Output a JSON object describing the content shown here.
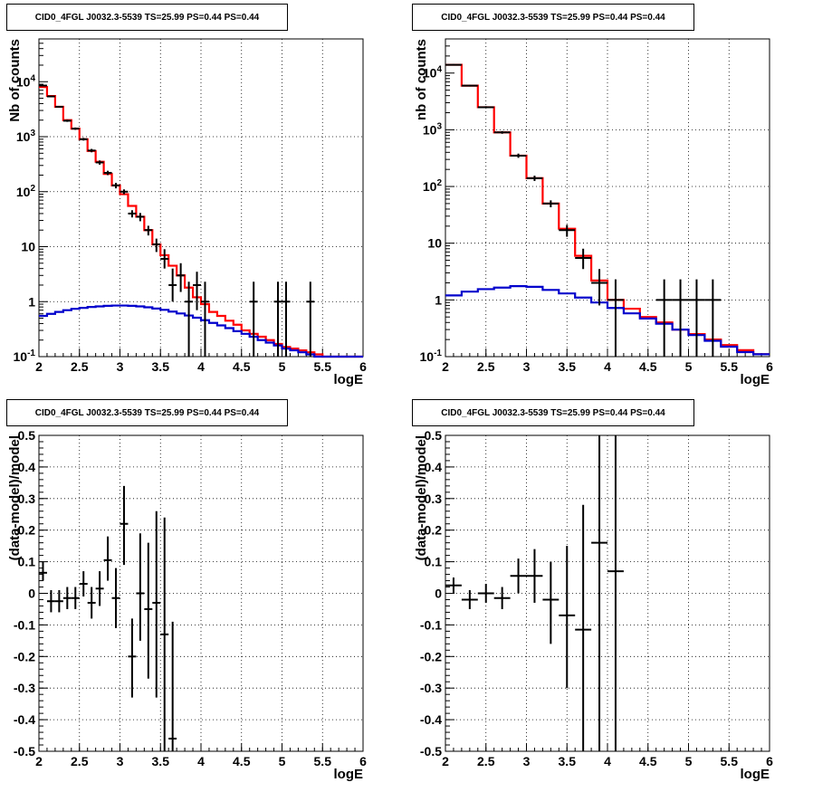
{
  "panels": [
    {
      "title": "CID0_4FGL J0032.3-5539 TS=25.99 PS=0.44 PS=0.44"
    },
    {
      "title": "CID0_4FGL J0032.3-5539 TS=25.99 PS=0.44 PS=0.44"
    },
    {
      "title": "CID0_4FGL J0032.3-5539 TS=25.99 PS=0.44 PS=0.44"
    },
    {
      "title": "CID0_4FGL J0032.3-5539 TS=25.99 PS=0.44 PS=0.44"
    }
  ],
  "colors": {
    "data": "#000000",
    "total_model": "#ff0000",
    "background": "#0000cc",
    "grid": "#000000"
  },
  "chart_data": [
    {
      "type": "line",
      "title": "CID0_4FGL J0032.3-5539 TS=25.99 PS=0.44 PS=0.44",
      "xlabel": "logE",
      "ylabel": "Nb of counts",
      "xlim": [
        2,
        6
      ],
      "ylim": [
        0.1,
        60000
      ],
      "ylog": true,
      "grid": true,
      "xticks": [
        2,
        2.5,
        3,
        3.5,
        4,
        4.5,
        5,
        5.5,
        6
      ],
      "xticklabels": [
        "2",
        "2.5",
        "3",
        "3.5",
        "4",
        "4.5",
        "5",
        "5.5",
        "6"
      ],
      "yticks": [
        0.1,
        1,
        10,
        100,
        1000,
        10000
      ],
      "yticklabels": [
        "10^-1",
        "1",
        "10",
        "10^2",
        "10^3",
        "10^4"
      ],
      "bin_width": 0.1,
      "x": [
        2.0,
        2.1,
        2.2,
        2.3,
        2.4,
        2.5,
        2.6,
        2.7,
        2.8,
        2.9,
        3.0,
        3.1,
        3.2,
        3.3,
        3.4,
        3.5,
        3.6,
        3.7,
        3.8,
        3.9,
        4.0,
        4.1,
        4.2,
        4.3,
        4.4,
        4.5,
        4.6,
        4.7,
        4.8,
        4.9,
        5.0,
        5.1,
        5.2,
        5.3,
        5.4,
        5.5,
        5.6,
        5.7,
        5.8,
        5.9
      ],
      "series": [
        {
          "role": "total_model",
          "values": [
            8000,
            5500,
            3500,
            2000,
            1400,
            900,
            550,
            350,
            210,
            130,
            90,
            55,
            35,
            20,
            11,
            7,
            4.5,
            3,
            1.8,
            1.2,
            0.9,
            0.65,
            0.55,
            0.45,
            0.38,
            0.3,
            0.26,
            0.23,
            0.2,
            0.17,
            0.15,
            0.14,
            0.13,
            0.12,
            0.11,
            0.1,
            0.1,
            0.1,
            0.1,
            0.1
          ]
        },
        {
          "role": "background",
          "values": [
            0.55,
            0.6,
            0.65,
            0.7,
            0.74,
            0.77,
            0.8,
            0.82,
            0.84,
            0.85,
            0.85,
            0.84,
            0.82,
            0.79,
            0.75,
            0.71,
            0.66,
            0.61,
            0.56,
            0.51,
            0.46,
            0.41,
            0.37,
            0.33,
            0.29,
            0.26,
            0.23,
            0.2,
            0.18,
            0.16,
            0.14,
            0.13,
            0.12,
            0.11,
            0.1,
            0.1,
            0.1,
            0.1,
            0.1,
            0.1
          ]
        }
      ],
      "points": [
        {
          "x": 2.05,
          "y": 8500,
          "lo": 8300,
          "hi": 8700
        },
        {
          "x": 2.15,
          "y": 5400,
          "lo": 5250,
          "hi": 5550
        },
        {
          "x": 2.25,
          "y": 3500,
          "lo": 3380,
          "hi": 3620
        },
        {
          "x": 2.35,
          "y": 1950,
          "lo": 1860,
          "hi": 2040
        },
        {
          "x": 2.45,
          "y": 1400,
          "lo": 1330,
          "hi": 1470
        },
        {
          "x": 2.55,
          "y": 900,
          "lo": 850,
          "hi": 950
        },
        {
          "x": 2.65,
          "y": 560,
          "lo": 520,
          "hi": 600
        },
        {
          "x": 2.75,
          "y": 340,
          "lo": 310,
          "hi": 370
        },
        {
          "x": 2.85,
          "y": 220,
          "lo": 200,
          "hi": 240
        },
        {
          "x": 2.95,
          "y": 130,
          "lo": 115,
          "hi": 145
        },
        {
          "x": 3.05,
          "y": 100,
          "lo": 90,
          "hi": 110
        },
        {
          "x": 3.15,
          "y": 40,
          "lo": 34,
          "hi": 46
        },
        {
          "x": 3.25,
          "y": 35,
          "lo": 29,
          "hi": 41
        },
        {
          "x": 3.35,
          "y": 20,
          "lo": 16,
          "hi": 24
        },
        {
          "x": 3.45,
          "y": 11,
          "lo": 8,
          "hi": 14
        },
        {
          "x": 3.55,
          "y": 6,
          "lo": 4,
          "hi": 9
        },
        {
          "x": 3.65,
          "y": 2,
          "lo": 1,
          "hi": 4
        },
        {
          "x": 3.75,
          "y": 3,
          "lo": 1.5,
          "hi": 5
        },
        {
          "x": 3.85,
          "y": 1,
          "lo": 0.1,
          "hi": 2.3
        },
        {
          "x": 3.95,
          "y": 2,
          "lo": 0.7,
          "hi": 3.5
        },
        {
          "x": 4.05,
          "y": 1,
          "lo": 0.1,
          "hi": 2.3
        },
        {
          "x": 4.65,
          "y": 1,
          "lo": 0.1,
          "hi": 2.3
        },
        {
          "x": 4.95,
          "y": 1,
          "lo": 0.1,
          "hi": 2.3
        },
        {
          "x": 5.05,
          "y": 1,
          "lo": 0.1,
          "hi": 2.3
        },
        {
          "x": 5.35,
          "y": 1,
          "lo": 0.1,
          "hi": 2.3
        }
      ]
    },
    {
      "type": "line",
      "title": "CID0_4FGL J0032.3-5539 TS=25.99 PS=0.44 PS=0.44",
      "xlabel": "logE",
      "ylabel": "nb of counts",
      "xlim": [
        2,
        6
      ],
      "ylim": [
        0.1,
        40000
      ],
      "ylog": true,
      "grid": true,
      "xticks": [
        2,
        2.5,
        3,
        3.5,
        4,
        4.5,
        5,
        5.5,
        6
      ],
      "xticklabels": [
        "2",
        "2.5",
        "3",
        "3.5",
        "4",
        "4.5",
        "5",
        "5.5",
        "6"
      ],
      "yticks": [
        0.1,
        1,
        10,
        100,
        1000,
        10000
      ],
      "yticklabels": [
        "10^-1",
        "1",
        "10",
        "10^2",
        "10^3",
        "10^4"
      ],
      "bin_width": 0.2,
      "x": [
        2.0,
        2.2,
        2.4,
        2.6,
        2.8,
        3.0,
        3.2,
        3.4,
        3.6,
        3.8,
        4.0,
        4.2,
        4.4,
        4.6,
        4.8,
        5.0,
        5.2,
        5.4,
        5.6,
        5.8
      ],
      "series": [
        {
          "role": "total_model",
          "values": [
            14000,
            6000,
            2500,
            900,
            350,
            140,
            50,
            18,
            6,
            2.2,
            1,
            0.7,
            0.5,
            0.4,
            0.3,
            0.25,
            0.2,
            0.16,
            0.13,
            0.11
          ]
        },
        {
          "role": "background",
          "values": [
            1.2,
            1.4,
            1.55,
            1.65,
            1.75,
            1.7,
            1.5,
            1.3,
            1.1,
            0.9,
            0.72,
            0.58,
            0.47,
            0.38,
            0.3,
            0.24,
            0.19,
            0.15,
            0.12,
            0.11
          ]
        }
      ],
      "points": [
        {
          "x": 2.1,
          "y": 14000,
          "lo": 13600,
          "hi": 14400
        },
        {
          "x": 2.3,
          "y": 6000,
          "lo": 5800,
          "hi": 6200
        },
        {
          "x": 2.5,
          "y": 2500,
          "lo": 2400,
          "hi": 2600
        },
        {
          "x": 2.7,
          "y": 900,
          "lo": 850,
          "hi": 950
        },
        {
          "x": 2.9,
          "y": 350,
          "lo": 320,
          "hi": 380
        },
        {
          "x": 3.1,
          "y": 140,
          "lo": 125,
          "hi": 155
        },
        {
          "x": 3.3,
          "y": 50,
          "lo": 43,
          "hi": 57
        },
        {
          "x": 3.5,
          "y": 17,
          "lo": 13,
          "hi": 21
        },
        {
          "x": 3.7,
          "y": 5.5,
          "lo": 3.5,
          "hi": 8
        },
        {
          "x": 3.9,
          "y": 2,
          "lo": 0.8,
          "hi": 3.5
        },
        {
          "x": 4.1,
          "y": 1,
          "lo": 0.1,
          "hi": 2.3
        },
        {
          "x": 4.7,
          "y": 1,
          "lo": 0.1,
          "hi": 2.3
        },
        {
          "x": 4.9,
          "y": 1,
          "lo": 0.1,
          "hi": 2.3
        },
        {
          "x": 5.1,
          "y": 1,
          "lo": 0.1,
          "hi": 2.3
        },
        {
          "x": 5.3,
          "y": 1,
          "lo": 0.1,
          "hi": 2.3
        }
      ]
    },
    {
      "type": "scatter",
      "title": "CID0_4FGL J0032.3-5539 TS=25.99 PS=0.44 PS=0.44",
      "xlabel": "logE",
      "ylabel": "(data-model)/model",
      "xlim": [
        2,
        6
      ],
      "ylim": [
        -0.5,
        0.5
      ],
      "ylog": false,
      "grid": true,
      "xticks": [
        2,
        2.5,
        3,
        3.5,
        4,
        4.5,
        5,
        5.5,
        6
      ],
      "xticklabels": [
        "2",
        "2.5",
        "3",
        "3.5",
        "4",
        "4.5",
        "5",
        "5.5",
        "6"
      ],
      "yticks": [
        -0.5,
        -0.4,
        -0.3,
        -0.2,
        -0.1,
        0,
        0.1,
        0.2,
        0.3,
        0.4,
        0.5
      ],
      "yticklabels": [
        "-0.5",
        "-0.4",
        "-0.3",
        "-0.2",
        "-0.1",
        "0",
        "0.1",
        "0.2",
        "0.3",
        "0.4",
        "0.5"
      ],
      "xerr": 0.05,
      "points": [
        {
          "x": 2.05,
          "y": 0.065,
          "lo": 0.04,
          "hi": 0.1
        },
        {
          "x": 2.15,
          "y": -0.025,
          "lo": -0.06,
          "hi": 0.01
        },
        {
          "x": 2.25,
          "y": -0.025,
          "lo": -0.06,
          "hi": 0.01
        },
        {
          "x": 2.35,
          "y": -0.015,
          "lo": -0.05,
          "hi": 0.02
        },
        {
          "x": 2.45,
          "y": -0.015,
          "lo": -0.05,
          "hi": 0.02
        },
        {
          "x": 2.55,
          "y": 0.03,
          "lo": -0.01,
          "hi": 0.07
        },
        {
          "x": 2.65,
          "y": -0.03,
          "lo": -0.08,
          "hi": 0.02
        },
        {
          "x": 2.75,
          "y": 0.015,
          "lo": -0.04,
          "hi": 0.07
        },
        {
          "x": 2.85,
          "y": 0.105,
          "lo": 0.04,
          "hi": 0.18
        },
        {
          "x": 2.95,
          "y": -0.015,
          "lo": -0.11,
          "hi": 0.08
        },
        {
          "x": 3.05,
          "y": 0.22,
          "lo": 0.09,
          "hi": 0.34
        },
        {
          "x": 3.15,
          "y": -0.2,
          "lo": -0.33,
          "hi": -0.08
        },
        {
          "x": 3.25,
          "y": 0.0,
          "lo": -0.15,
          "hi": 0.19
        },
        {
          "x": 3.35,
          "y": -0.05,
          "lo": -0.27,
          "hi": 0.16
        },
        {
          "x": 3.45,
          "y": -0.03,
          "lo": -0.33,
          "hi": 0.26
        },
        {
          "x": 3.55,
          "y": -0.13,
          "lo": -0.5,
          "hi": 0.24
        },
        {
          "x": 3.65,
          "y": -0.46,
          "lo": -0.5,
          "hi": -0.09
        }
      ]
    },
    {
      "type": "scatter",
      "title": "CID0_4FGL J0032.3-5539 TS=25.99 PS=0.44 PS=0.44",
      "xlabel": "logE",
      "ylabel": "(data-model)/model",
      "xlim": [
        2,
        6
      ],
      "ylim": [
        -0.5,
        0.5
      ],
      "ylog": false,
      "grid": true,
      "xticks": [
        2,
        2.5,
        3,
        3.5,
        4,
        4.5,
        5,
        5.5,
        6
      ],
      "xticklabels": [
        "2",
        "2.5",
        "3",
        "3.5",
        "4",
        "4.5",
        "5",
        "5.5",
        "6"
      ],
      "yticks": [
        -0.5,
        -0.4,
        -0.3,
        -0.2,
        -0.1,
        0,
        0.1,
        0.2,
        0.3,
        0.4,
        0.5
      ],
      "yticklabels": [
        "-0.5",
        "-0.4",
        "-0.3",
        "-0.2",
        "-0.1",
        "0",
        "0.1",
        "0.2",
        "0.3",
        "0.4",
        "0.5"
      ],
      "xerr": 0.1,
      "points": [
        {
          "x": 2.1,
          "y": 0.025,
          "lo": 0.0,
          "hi": 0.05
        },
        {
          "x": 2.3,
          "y": -0.02,
          "lo": -0.05,
          "hi": 0.01
        },
        {
          "x": 2.5,
          "y": 0.0,
          "lo": -0.03,
          "hi": 0.03
        },
        {
          "x": 2.7,
          "y": -0.015,
          "lo": -0.05,
          "hi": 0.02
        },
        {
          "x": 2.9,
          "y": 0.055,
          "lo": 0.0,
          "hi": 0.11
        },
        {
          "x": 3.1,
          "y": 0.055,
          "lo": -0.03,
          "hi": 0.14
        },
        {
          "x": 3.3,
          "y": -0.02,
          "lo": -0.16,
          "hi": 0.1
        },
        {
          "x": 3.5,
          "y": -0.07,
          "lo": -0.3,
          "hi": 0.15
        },
        {
          "x": 3.7,
          "y": -0.115,
          "lo": -0.5,
          "hi": 0.28
        },
        {
          "x": 3.9,
          "y": 0.16,
          "lo": -0.5,
          "hi": 0.5
        },
        {
          "x": 4.1,
          "y": 0.07,
          "lo": -0.5,
          "hi": 0.5
        }
      ]
    }
  ]
}
